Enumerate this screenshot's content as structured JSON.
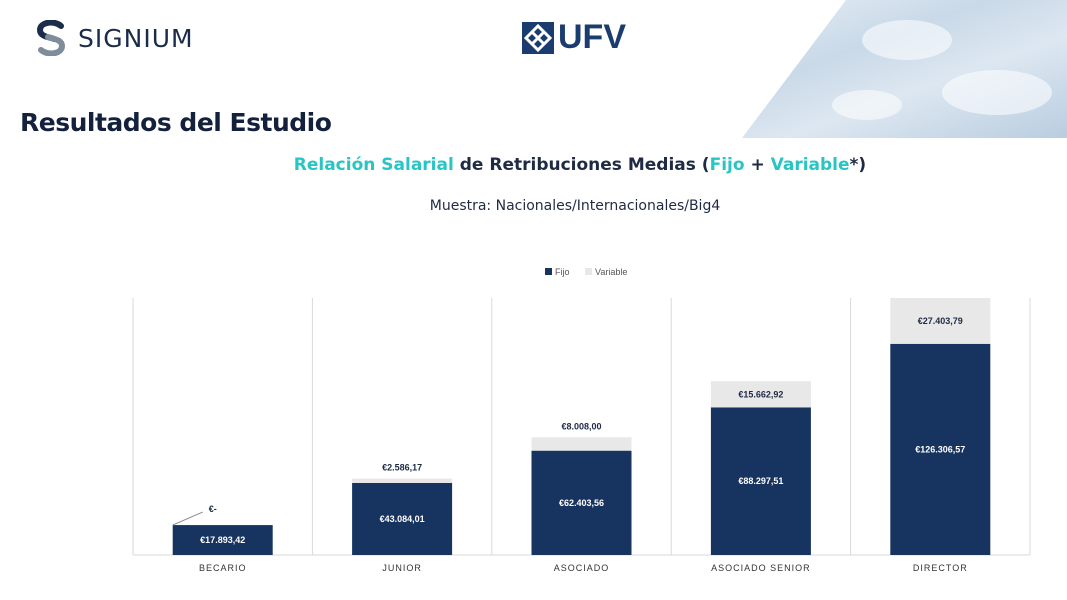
{
  "header": {
    "brand_left": "SIGNIUM",
    "brand_center": "UFV",
    "page_title": "Resultados del Estudio"
  },
  "title_parts": [
    {
      "text": "Relación Salarial",
      "highlight": true
    },
    {
      "text": " de Retribuciones Medias (",
      "highlight": false
    },
    {
      "text": "Fijo",
      "highlight": true
    },
    {
      "text": " + ",
      "highlight": false
    },
    {
      "text": "Variable",
      "highlight": true
    },
    {
      "text": "*)",
      "highlight": false
    }
  ],
  "subtitle": "Muestra: Nacionales/Internacionales/Big4",
  "colors": {
    "fijo": "#17335f",
    "variable": "#e8e8e8",
    "accent": "#29c4c4",
    "gridline": "#d9d9d9"
  },
  "chart_data": {
    "type": "bar",
    "stacked": true,
    "categories": [
      "BECARIO",
      "JUNIOR",
      "ASOCIADO",
      "ASOCIADO SENIOR",
      "DIRECTOR"
    ],
    "series": [
      {
        "name": "Fijo",
        "values": [
          17893.42,
          43084.01,
          62403.56,
          88297.51,
          126306.57
        ],
        "labels": [
          "€17.893,42",
          "€43.084,01",
          "€62.403,56",
          "€88.297,51",
          "€126.306,57"
        ]
      },
      {
        "name": "Variable",
        "values": [
          0,
          2586.17,
          8008.0,
          15662.92,
          27403.79
        ],
        "labels": [
          "€-",
          "€2.586,17",
          "€8.008,00",
          "€15.662,92",
          "€27.403,79"
        ]
      }
    ],
    "ylim": [
      0,
      153710.36
    ],
    "legend": "top-center",
    "grid": "vertical-separators"
  }
}
